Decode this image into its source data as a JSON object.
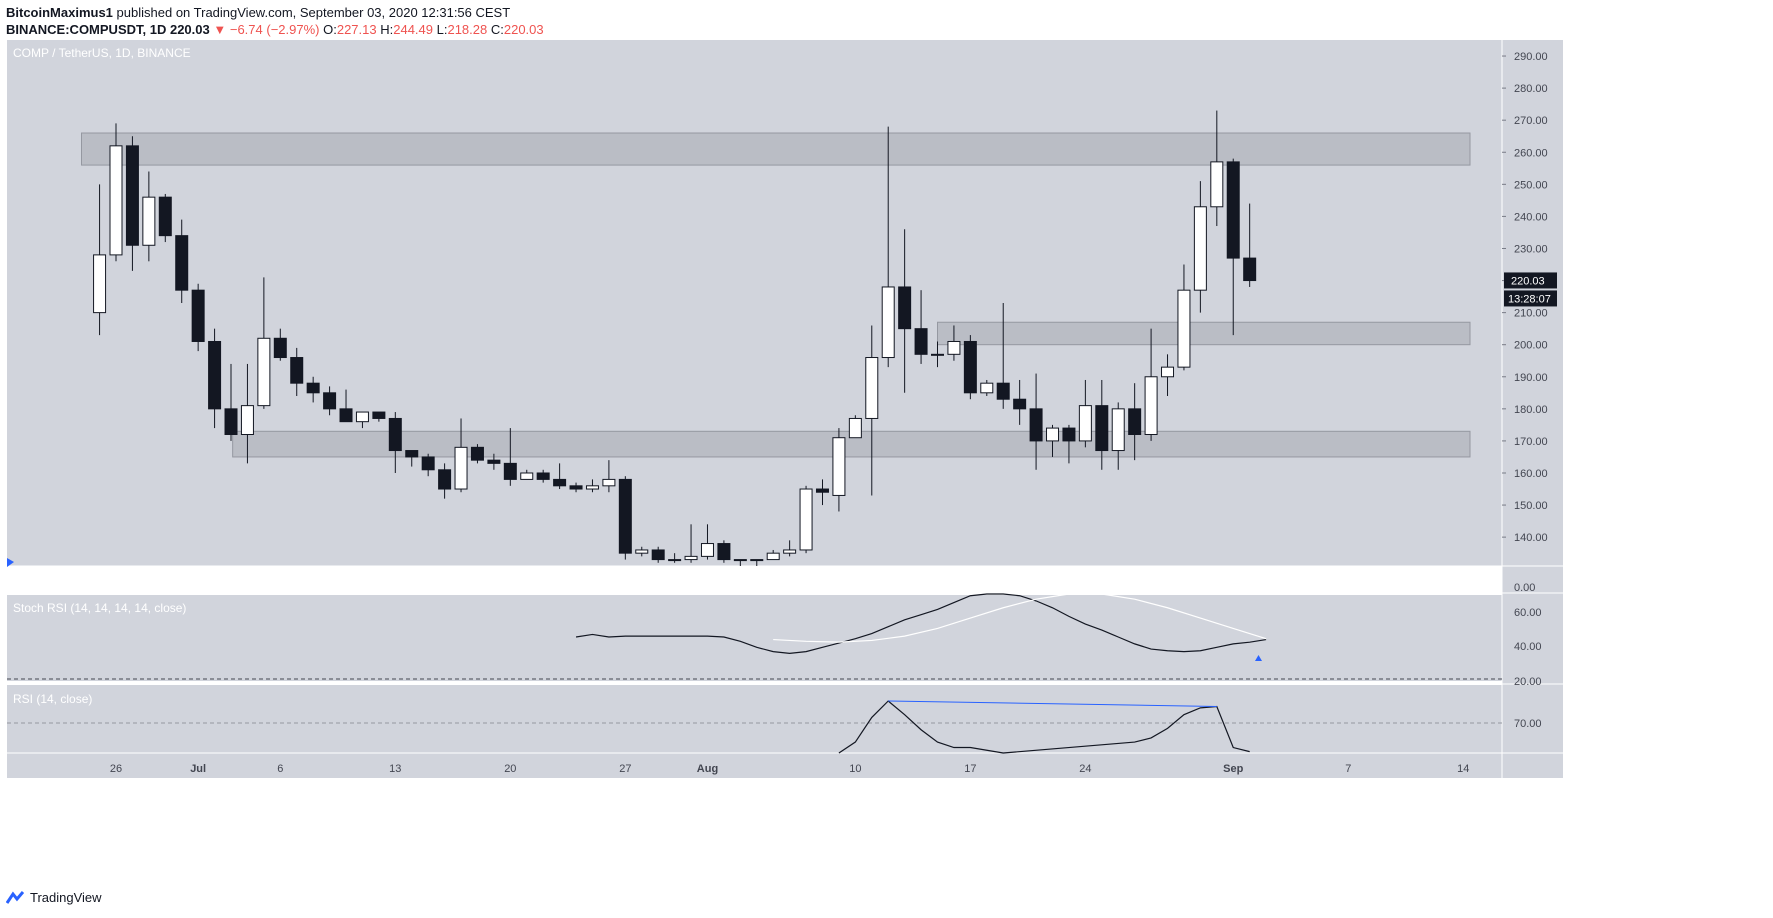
{
  "header": {
    "author": "BitcoinMaximus1",
    "published_text": "published on TradingView.com, September 03, 2020 12:31:56 CEST",
    "symbol": "BINANCE:COMPUSDT, 1D",
    "last": "220.03",
    "change": "−6.74 (−2.97%)",
    "o_label": "O:",
    "o": "227.13",
    "h_label": "H:",
    "h": "244.49",
    "l_label": "L:",
    "l": "218.28",
    "c_label": "C:",
    "c": "220.03"
  },
  "colors": {
    "panel_bg": "#d1d4dc",
    "bull": "#ffffff",
    "bear": "#131722",
    "zone": "#b2b5be",
    "rsi_line": "#131722",
    "signal_line": "#ffffff",
    "trendline": "#2962ff"
  },
  "chart_data": {
    "type": "candlestick",
    "legend": "COMP / TetherUS, 1D, BINANCE",
    "ylim": [
      131,
      295
    ],
    "y_ticks": [
      "290.00",
      "280.00",
      "270.00",
      "260.00",
      "250.00",
      "240.00",
      "230.00",
      "220.00",
      "210.00",
      "200.00",
      "190.00",
      "180.00",
      "170.00",
      "160.00",
      "150.00",
      "140.00"
    ],
    "x_ticks": [
      "26",
      "Jul",
      "6",
      "13",
      "20",
      "27",
      "Aug",
      "10",
      "17",
      "24",
      "Sep",
      "7",
      "14"
    ],
    "x_tick_days": [
      0,
      5,
      10,
      17,
      24,
      31,
      36,
      45,
      52,
      59,
      68,
      75,
      82
    ],
    "price_label": "220.03",
    "countdown_label": "13:28:07",
    "zones": [
      [
        256,
        266
      ],
      [
        200,
        207
      ],
      [
        165,
        173
      ]
    ],
    "candles": [
      [
        -1,
        210,
        228,
        250,
        203
      ],
      [
        0,
        228,
        262,
        269,
        226
      ],
      [
        1,
        262,
        231,
        265,
        223
      ],
      [
        2,
        231,
        246,
        254,
        226
      ],
      [
        3,
        246,
        234,
        247,
        232
      ],
      [
        4,
        234,
        217,
        239,
        213
      ],
      [
        5,
        217,
        201,
        219,
        198
      ],
      [
        6,
        201,
        180,
        205,
        174
      ],
      [
        7,
        180,
        172,
        194,
        170
      ],
      [
        8,
        172,
        181,
        194,
        163
      ],
      [
        9,
        181,
        202,
        221,
        180
      ],
      [
        10,
        202,
        196,
        205,
        195
      ],
      [
        11,
        196,
        188,
        199,
        184
      ],
      [
        12,
        188,
        185,
        190,
        182
      ],
      [
        13,
        185,
        180,
        187,
        178
      ],
      [
        14,
        180,
        176,
        186,
        176
      ],
      [
        15,
        176,
        179,
        179,
        174
      ],
      [
        16,
        179,
        177,
        179,
        176
      ],
      [
        17,
        177,
        167,
        179,
        160
      ],
      [
        18,
        167,
        165,
        167,
        162
      ],
      [
        19,
        165,
        161,
        166,
        159
      ],
      [
        20,
        161,
        155,
        163,
        152
      ],
      [
        21,
        155,
        168,
        177,
        154
      ],
      [
        22,
        168,
        164,
        169,
        163
      ],
      [
        23,
        164,
        163,
        166,
        161
      ],
      [
        24,
        163,
        158,
        174,
        156
      ],
      [
        25,
        158,
        160,
        161,
        158
      ],
      [
        26,
        160,
        158,
        161,
        157
      ],
      [
        27,
        158,
        156,
        163,
        155
      ],
      [
        28,
        156,
        155,
        157,
        154
      ],
      [
        29,
        155,
        156,
        158,
        154
      ],
      [
        30,
        156,
        158,
        164,
        154
      ],
      [
        31,
        158,
        135,
        159,
        133
      ],
      [
        32,
        135,
        136,
        137,
        134
      ],
      [
        33,
        136,
        133,
        137,
        132
      ],
      [
        34,
        133,
        133,
        135,
        132
      ],
      [
        35,
        133,
        134,
        144,
        132
      ],
      [
        36,
        134,
        138,
        144,
        133
      ],
      [
        37,
        138,
        133,
        139,
        132
      ],
      [
        38,
        133,
        133,
        133,
        131
      ],
      [
        39,
        133,
        133,
        133,
        131
      ],
      [
        40,
        133,
        135,
        136,
        134
      ],
      [
        41,
        135,
        136,
        139,
        134
      ],
      [
        42,
        136,
        155,
        156,
        135
      ],
      [
        43,
        155,
        154,
        158,
        150
      ],
      [
        44,
        153,
        171,
        174,
        148
      ],
      [
        45,
        171,
        177,
        178,
        174
      ],
      [
        46,
        177,
        196,
        206,
        153
      ],
      [
        47,
        196,
        218,
        268,
        193
      ],
      [
        48,
        218,
        205,
        236,
        185
      ],
      [
        49,
        205,
        197,
        217,
        194
      ],
      [
        50,
        197,
        197,
        201,
        193
      ],
      [
        51,
        197,
        201,
        206,
        195
      ],
      [
        52,
        201,
        185,
        203,
        183
      ],
      [
        53,
        185,
        188,
        189,
        184
      ],
      [
        54,
        188,
        183,
        213,
        180
      ],
      [
        55,
        183,
        180,
        189,
        175
      ],
      [
        56,
        180,
        170,
        191,
        161
      ],
      [
        57,
        170,
        174,
        175,
        165
      ],
      [
        58,
        174,
        170,
        175,
        163
      ],
      [
        59,
        170,
        181,
        189,
        168
      ],
      [
        60,
        181,
        167,
        189,
        161
      ],
      [
        61,
        167,
        180,
        182,
        161
      ],
      [
        62,
        180,
        172,
        188,
        164
      ],
      [
        63,
        172,
        190,
        205,
        170
      ],
      [
        64,
        190,
        193,
        197,
        184
      ],
      [
        65,
        193,
        217,
        225,
        192
      ],
      [
        66,
        217,
        243,
        251,
        210
      ],
      [
        67,
        243,
        257,
        273,
        237
      ],
      [
        68,
        257,
        227,
        258,
        203
      ],
      [
        69,
        227,
        220,
        244,
        218
      ]
    ]
  },
  "stoch_rsi": {
    "legend": "Stoch RSI (14, 14, 14, 14, close)",
    "ylim": [
      0,
      100
    ],
    "ticks": [
      "0.00",
      "60.00",
      "40.00",
      "20.00"
    ],
    "k": [
      [
        28,
        50
      ],
      [
        29,
        53
      ],
      [
        30,
        50
      ],
      [
        31,
        51
      ],
      [
        33,
        51
      ],
      [
        34,
        51
      ],
      [
        35,
        51
      ],
      [
        36,
        51
      ],
      [
        37,
        50
      ],
      [
        38,
        45
      ],
      [
        39,
        38
      ],
      [
        40,
        33
      ],
      [
        41,
        31
      ],
      [
        42,
        33
      ],
      [
        43,
        38
      ],
      [
        44,
        43
      ],
      [
        45,
        48
      ],
      [
        46,
        54
      ],
      [
        47,
        62
      ],
      [
        48,
        70
      ],
      [
        49,
        76
      ],
      [
        50,
        82
      ],
      [
        51,
        90
      ],
      [
        52,
        98
      ],
      [
        53,
        100
      ],
      [
        54,
        100
      ],
      [
        55,
        98
      ],
      [
        56,
        92
      ],
      [
        57,
        84
      ],
      [
        58,
        74
      ],
      [
        59,
        65
      ],
      [
        60,
        58
      ],
      [
        61,
        50
      ],
      [
        62,
        42
      ],
      [
        63,
        36
      ],
      [
        64,
        34
      ],
      [
        65,
        33
      ],
      [
        66,
        34
      ],
      [
        67,
        38
      ],
      [
        68,
        42
      ],
      [
        69,
        44
      ],
      [
        70,
        47
      ]
    ],
    "d": [
      [
        40,
        47
      ],
      [
        42,
        45
      ],
      [
        44,
        44
      ],
      [
        46,
        46
      ],
      [
        48,
        51
      ],
      [
        50,
        60
      ],
      [
        52,
        72
      ],
      [
        54,
        84
      ],
      [
        56,
        94
      ],
      [
        58,
        100
      ],
      [
        60,
        100
      ],
      [
        62,
        94
      ],
      [
        64,
        84
      ],
      [
        66,
        72
      ],
      [
        68,
        60
      ],
      [
        70,
        48
      ]
    ]
  },
  "rsi": {
    "legend": "RSI (14, close)",
    "ylim": [
      30,
      80
    ],
    "ticks": [
      "70.00"
    ],
    "line": [
      [
        44,
        40
      ],
      [
        45,
        48
      ],
      [
        46,
        66
      ],
      [
        47,
        78
      ],
      [
        48,
        68
      ],
      [
        49,
        57
      ],
      [
        50,
        48
      ],
      [
        51,
        44
      ],
      [
        52,
        44
      ],
      [
        53,
        42
      ],
      [
        54,
        40
      ],
      [
        62,
        48
      ],
      [
        63,
        51
      ],
      [
        64,
        58
      ],
      [
        65,
        68
      ],
      [
        66,
        73
      ],
      [
        67,
        74
      ],
      [
        68,
        44
      ],
      [
        69,
        41
      ]
    ],
    "divergence": [
      [
        47,
        78
      ],
      [
        67,
        74
      ]
    ]
  },
  "footer": {
    "brand": "TradingView"
  }
}
